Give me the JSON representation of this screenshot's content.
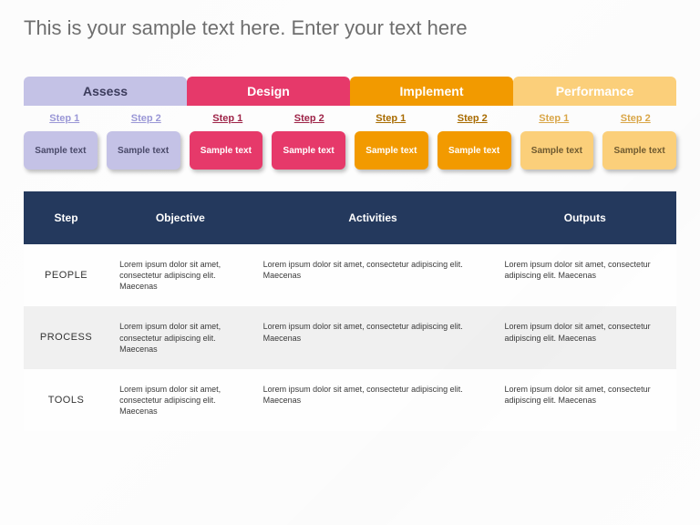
{
  "title": "This is your sample text here. Enter your text here",
  "phases": [
    {
      "label": "Assess",
      "tab_bg": "#c4c2e6",
      "tab_text": "#3c3c5c",
      "step_link_color": "#9a97d6",
      "card_bg": "#c4c2e6",
      "card_text": "#4a4a6a"
    },
    {
      "label": "Design",
      "tab_bg": "#e6396a",
      "tab_text": "#ffffff",
      "step_link_color": "#9e2448",
      "card_bg": "#e6396a",
      "card_text": "#ffffff"
    },
    {
      "label": "Implement",
      "tab_bg": "#f29a00",
      "tab_text": "#ffffff",
      "step_link_color": "#a86b00",
      "card_bg": "#f29a00",
      "card_text": "#ffffff"
    },
    {
      "label": "Performance",
      "tab_bg": "#fbcf7a",
      "tab_text": "#ffffff",
      "step_link_color": "#d9a648",
      "card_bg": "#fbcf7a",
      "card_text": "#6f5a30"
    }
  ],
  "step_labels": [
    "Step 1",
    "Step 2"
  ],
  "card_text": "Sample text",
  "table": {
    "header_bg": "#24395d",
    "header_text": "#ffffff",
    "columns": [
      "Step",
      "Objective",
      "Activities",
      "Outputs"
    ],
    "rows": [
      {
        "label": "PEOPLE",
        "objective": "Lorem ipsum dolor sit amet, consectetur adipiscing elit. Maecenas",
        "activities": "Lorem ipsum dolor sit amet, consectetur adipiscing elit. Maecenas",
        "outputs": "Lorem ipsum dolor sit amet, consectetur adipiscing elit. Maecenas"
      },
      {
        "label": "PROCESS",
        "objective": "Lorem ipsum dolor sit amet, consectetur adipiscing elit. Maecenas",
        "activities": "Lorem ipsum dolor sit amet, consectetur adipiscing elit. Maecenas",
        "outputs": "Lorem ipsum dolor sit amet, consectetur adipiscing elit. Maecenas"
      },
      {
        "label": "TOOLS",
        "objective": "Lorem ipsum dolor sit amet, consectetur adipiscing elit. Maecenas",
        "activities": "Lorem ipsum dolor sit amet, consectetur adipiscing elit. Maecenas",
        "outputs": "Lorem ipsum dolor sit amet, consectetur adipiscing elit. Maecenas"
      }
    ]
  }
}
